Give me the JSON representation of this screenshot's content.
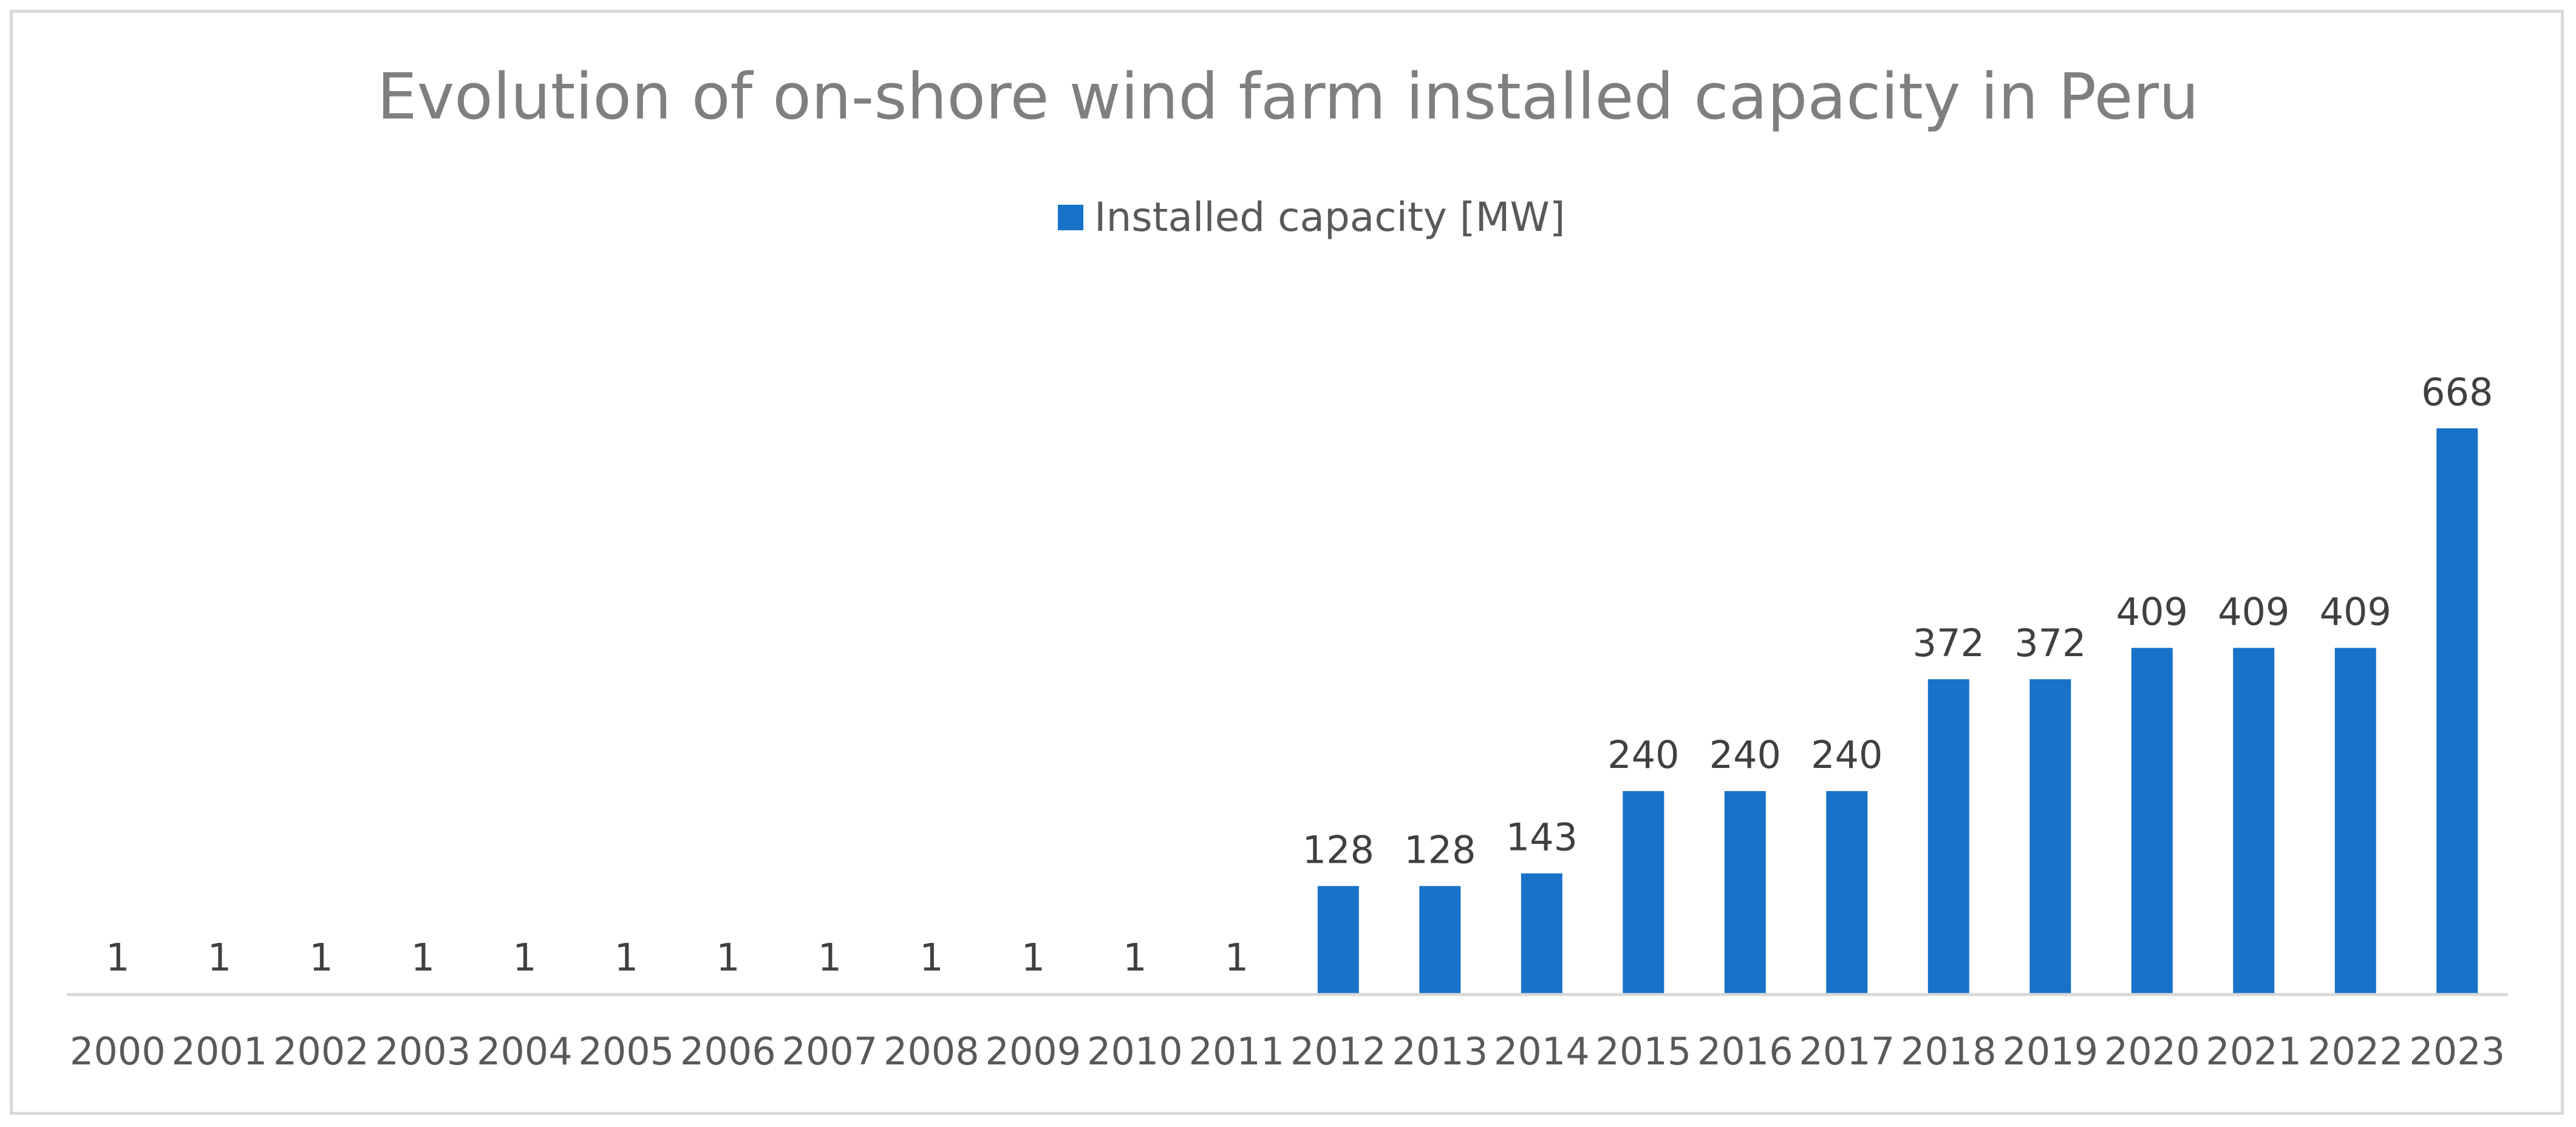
{
  "chart_data": {
    "type": "bar",
    "title": "Evolution of on-shore wind farm installed capacity in Peru",
    "xlabel": "",
    "ylabel": "",
    "ylim": [
      0,
      680
    ],
    "grid": false,
    "legend_position": "top-center",
    "categories": [
      "2000",
      "2001",
      "2002",
      "2003",
      "2004",
      "2005",
      "2006",
      "2007",
      "2008",
      "2009",
      "2010",
      "2011",
      "2012",
      "2013",
      "2014",
      "2015",
      "2016",
      "2017",
      "2018",
      "2019",
      "2020",
      "2021",
      "2022",
      "2023"
    ],
    "series": [
      {
        "name": "Installed capacity [MW]",
        "color": "#1772c8",
        "values": [
          1,
          1,
          1,
          1,
          1,
          1,
          1,
          1,
          1,
          1,
          1,
          1,
          128,
          128,
          143,
          240,
          240,
          240,
          372,
          372,
          409,
          409,
          409,
          668
        ],
        "data_labels": [
          "1",
          "1",
          "1",
          "1",
          "1",
          "1",
          "1",
          "1",
          "1",
          "1",
          "1",
          "1",
          "128",
          "128",
          "143",
          "240",
          "240",
          "240",
          "372",
          "372",
          "409",
          "409",
          "409",
          "668"
        ]
      }
    ]
  },
  "colors": {
    "bar": "#1772c8",
    "axis": "#d9d9d9",
    "frame": "#d9d9d9",
    "title": "#7f7f7f",
    "text": "#595959"
  }
}
